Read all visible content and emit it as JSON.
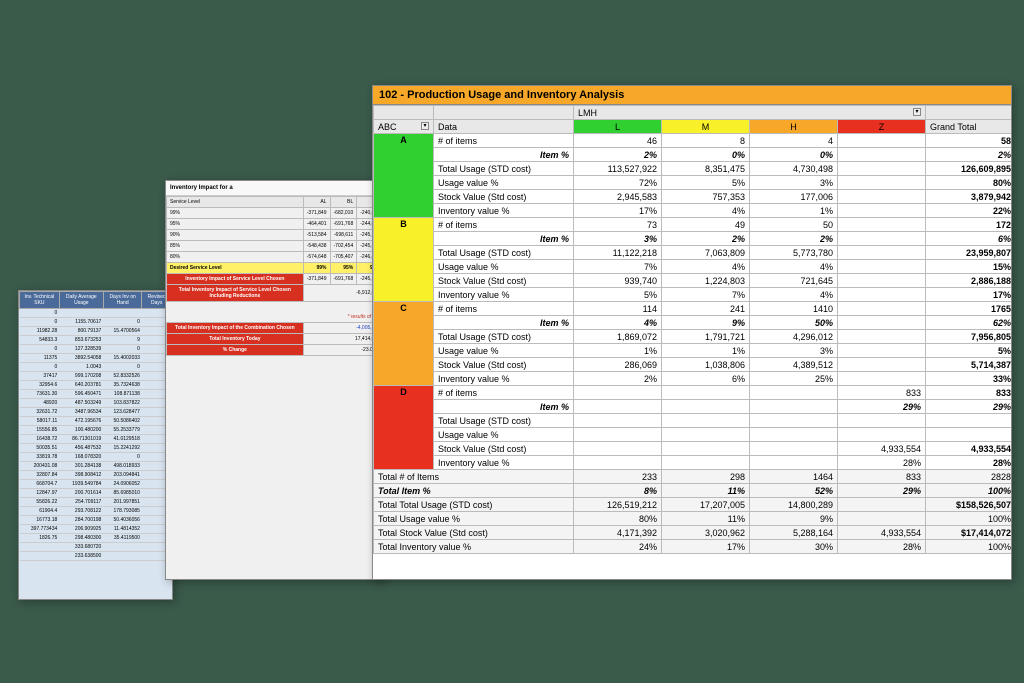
{
  "colors": {
    "page_bg": "#3a5a4a",
    "title_bar": "#f8a828",
    "cat_A": "#30d030",
    "cat_B": "#f8f028",
    "cat_C": "#f8a828",
    "cat_D": "#e83020",
    "red_label": "#d83020",
    "blue_val": "#2040c0"
  },
  "back_panel": {
    "headers": [
      "Inv. Technical SKU",
      "Daily Average Usage",
      "Days Inv on Hand",
      "Revised Days"
    ],
    "rows": [
      [
        "0",
        "",
        "",
        ""
      ],
      [
        "0",
        "1155.70617",
        "0",
        ""
      ],
      [
        "11982.28",
        "800.79137",
        "15.4700564",
        ""
      ],
      [
        "54833.3",
        "853.673253",
        "9",
        ""
      ],
      [
        "0",
        "127.328539",
        "0",
        ""
      ],
      [
        "11375",
        "3892.54058",
        "15.4002033",
        ""
      ],
      [
        "0",
        "1.0043",
        "0",
        ""
      ],
      [
        "37417",
        "999.170208",
        "52.8332526",
        ""
      ],
      [
        "32954.6",
        "640.203781",
        "35.7324638",
        ""
      ],
      [
        "73631.30",
        "596.450471",
        "108.871138",
        ""
      ],
      [
        "48920",
        "487.503249",
        "103.837822",
        ""
      ],
      [
        "32631.72",
        "3487.96534",
        "123.628477",
        ""
      ],
      [
        "58017.11",
        "472.195676",
        "50.5086402",
        ""
      ],
      [
        "15556.85",
        "100.480200",
        "55.2533779",
        ""
      ],
      [
        "16438.72",
        "86.71301019",
        "41.0129518",
        ""
      ],
      [
        "50035.51",
        "456.487532",
        "15.2241292",
        ""
      ],
      [
        "33819.78",
        "168.078320",
        "0",
        ""
      ],
      [
        "200431.08",
        "301.284138",
        "498.018933",
        ""
      ],
      [
        "32807.84",
        "398.908412",
        "203.094841",
        ""
      ],
      [
        "668704.7",
        "1939.549784",
        "24.0906052",
        ""
      ],
      [
        "12847.97",
        "200.701614",
        "85.6985010",
        ""
      ],
      [
        "55826.22",
        "254.709117",
        "201.997851",
        ""
      ],
      [
        "61904.4",
        "293.708122",
        "178.793085",
        ""
      ],
      [
        "16773.18",
        "284.700198",
        "50.4036056",
        ""
      ],
      [
        "397.773434",
        "206.909925",
        "11.4814352",
        ""
      ],
      [
        "1826.75",
        "298.480300",
        "35.4119500",
        ""
      ],
      [
        "",
        "333.680720",
        "",
        ""
      ],
      [
        "",
        "233.638500",
        "",
        ""
      ]
    ]
  },
  "mid_panel": {
    "header": "Inventory Impact for a",
    "col_headers": [
      "Service Level",
      "AL",
      "BL",
      "EL"
    ],
    "rows": [
      [
        "99%",
        "-371,849",
        "-682,010",
        "-240,042"
      ],
      [
        "95%",
        "-464,401",
        "-691,768",
        "-244,092"
      ],
      [
        "90%",
        "-513,584",
        "-698,611",
        "-245,154"
      ],
      [
        "85%",
        "-548,438",
        "-702,454",
        "-245,868"
      ],
      [
        "80%",
        "-574,648",
        "-705,407",
        "-246,418"
      ]
    ],
    "desired_label": "Desired Service Level",
    "desired_vals": [
      "99%",
      "95%",
      "90%"
    ],
    "impact1_label": "Inventory Impact of Service Level Chosen",
    "impact1_vals": [
      "-371,849",
      "-691,768",
      "-245,154"
    ],
    "impact2_label": "Total Inventory Impact of Service Level Chosen Including Reductions",
    "impact2_val": "-6,912,070",
    "results_note": "* results of the",
    "combo_label": "Total Inventory Impact of the Combination Chosen",
    "combo_val": "-4,005,816",
    "today_label": "Total Inventory Today",
    "today_val": "17,414,072",
    "change_label": "% Change",
    "change_val": "-23.01%"
  },
  "front_panel": {
    "title": "102 - Production Usage and Inventory Analysis",
    "abc_label": "ABC",
    "data_label": "Data",
    "lmh_label": "LMH",
    "grand_total_label": "Grand Total",
    "col_headers": [
      "L",
      "M",
      "H",
      "Z"
    ],
    "metrics": [
      "# of items",
      "Item %",
      "Total Usage (STD cost)",
      "Usage value %",
      "Stock Value (Std cost)",
      "Inventory value %"
    ],
    "sections": [
      {
        "cat": "A",
        "rows": [
          [
            "46",
            "8",
            "4",
            "",
            "58"
          ],
          [
            "2%",
            "0%",
            "0%",
            "",
            "2%"
          ],
          [
            "113,527,922",
            "8,351,475",
            "4,730,498",
            "",
            "126,609,895"
          ],
          [
            "72%",
            "5%",
            "3%",
            "",
            "80%"
          ],
          [
            "2,945,583",
            "757,353",
            "177,006",
            "",
            "3,879,942"
          ],
          [
            "17%",
            "4%",
            "1%",
            "",
            "22%"
          ]
        ]
      },
      {
        "cat": "B",
        "rows": [
          [
            "73",
            "49",
            "50",
            "",
            "172"
          ],
          [
            "3%",
            "2%",
            "2%",
            "",
            "6%"
          ],
          [
            "11,122,218",
            "7,063,809",
            "5,773,780",
            "",
            "23,959,807"
          ],
          [
            "7%",
            "4%",
            "4%",
            "",
            "15%"
          ],
          [
            "939,740",
            "1,224,803",
            "721,645",
            "",
            "2,886,188"
          ],
          [
            "5%",
            "7%",
            "4%",
            "",
            "17%"
          ]
        ]
      },
      {
        "cat": "C",
        "rows": [
          [
            "114",
            "241",
            "1410",
            "",
            "1765"
          ],
          [
            "4%",
            "9%",
            "50%",
            "",
            "62%"
          ],
          [
            "1,869,072",
            "1,791,721",
            "4,296,012",
            "",
            "7,956,805"
          ],
          [
            "1%",
            "1%",
            "3%",
            "",
            "5%"
          ],
          [
            "286,069",
            "1,038,806",
            "4,389,512",
            "",
            "5,714,387"
          ],
          [
            "2%",
            "6%",
            "25%",
            "",
            "33%"
          ]
        ]
      },
      {
        "cat": "D",
        "rows": [
          [
            "",
            "",
            "",
            "833",
            "833"
          ],
          [
            "",
            "",
            "",
            "29%",
            "29%"
          ],
          [
            "",
            "",
            "",
            "",
            ""
          ],
          [
            "",
            "",
            "",
            "",
            ""
          ],
          [
            "",
            "",
            "",
            "4,933,554",
            "4,933,554"
          ],
          [
            "",
            "",
            "",
            "28%",
            "28%"
          ]
        ]
      }
    ],
    "totals": [
      {
        "label": "Total # of Items",
        "vals": [
          "233",
          "298",
          "1464",
          "833",
          "2828"
        ]
      },
      {
        "label": "Total Item %",
        "vals": [
          "8%",
          "11%",
          "52%",
          "29%",
          "100%"
        ],
        "ital": true
      },
      {
        "label": "Total Total Usage (STD cost)",
        "vals": [
          "126,519,212",
          "17,207,005",
          "14,800,289",
          "",
          "$158,526,507"
        ],
        "bold_gt": true
      },
      {
        "label": "Total Usage value %",
        "vals": [
          "80%",
          "11%",
          "9%",
          "",
          "100%"
        ]
      },
      {
        "label": "Total Stock Value (Std cost)",
        "vals": [
          "4,171,392",
          "3,020,962",
          "5,288,164",
          "4,933,554",
          "$17,414,072"
        ],
        "bold_gt": true
      },
      {
        "label": "Total Inventory value %",
        "vals": [
          "24%",
          "17%",
          "30%",
          "28%",
          "100%"
        ]
      }
    ]
  }
}
